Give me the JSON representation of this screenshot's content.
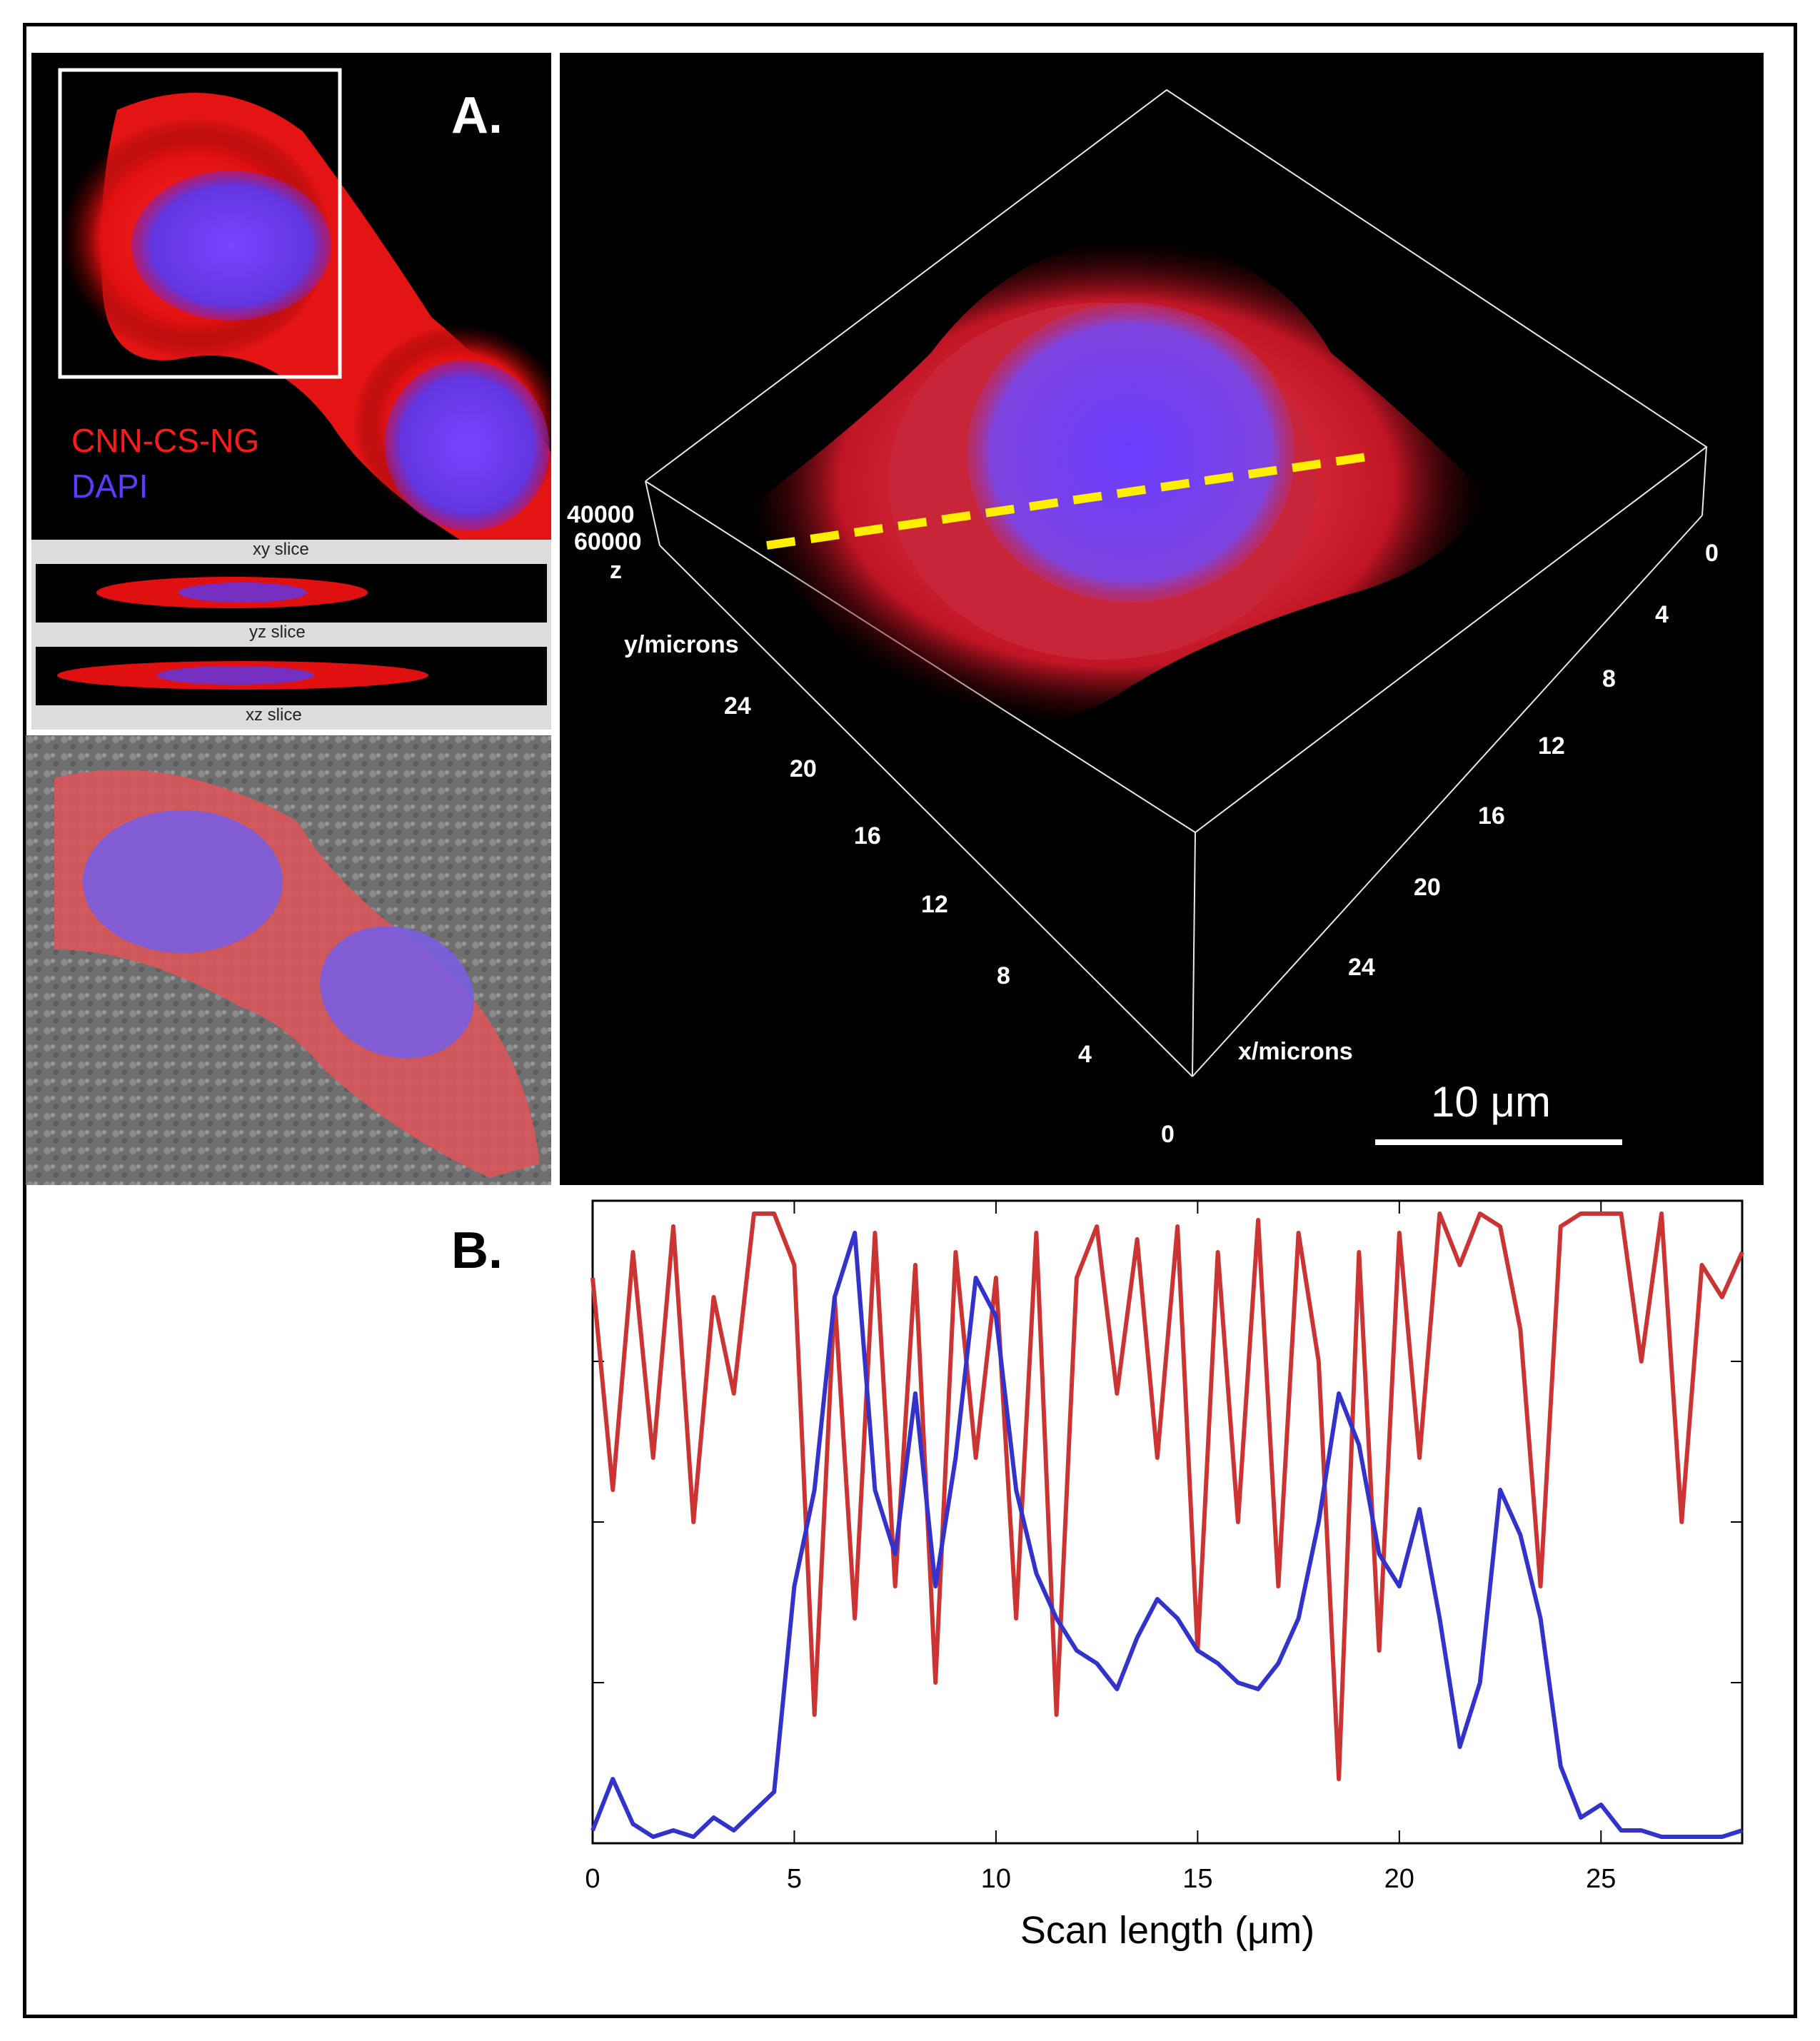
{
  "figure": {
    "panel_a_label": "A.",
    "panel_b_label": "B.",
    "channels": {
      "red": "CNN-CS-NG",
      "blue": "DAPI"
    },
    "slice_labels": [
      "xy slice",
      "yz slice",
      "xz slice"
    ],
    "volume": {
      "z_label": "z",
      "z_ticks": [
        "40000",
        "60000"
      ],
      "y_label": "y/microns",
      "y_ticks": [
        "24",
        "20",
        "16",
        "12",
        "8",
        "4",
        "0"
      ],
      "x_label": "x/microns",
      "x_ticks": [
        "0",
        "4",
        "8",
        "12",
        "16",
        "20",
        "24"
      ],
      "scale_bar": "10 μm"
    },
    "colors": {
      "red_channel": "#ff1a1a",
      "blue_channel": "#6a3cff",
      "dashed_line": "#ffee00"
    }
  },
  "chart_data": {
    "type": "line",
    "xlabel": "Scan length (μm)",
    "ylabel": "",
    "xlim": [
      0,
      28.5
    ],
    "ylim": [
      0,
      1
    ],
    "x_ticks": [
      "0",
      "5",
      "10",
      "15",
      "20",
      "25"
    ],
    "series": [
      {
        "color": "#cc3333",
        "x": [
          0.0,
          0.5,
          1.0,
          1.5,
          2.0,
          2.5,
          3.0,
          3.5,
          4.0,
          4.5,
          5.0,
          5.5,
          6.0,
          6.5,
          7.0,
          7.5,
          8.0,
          8.5,
          9.0,
          9.5,
          10.0,
          10.5,
          11.0,
          11.5,
          12.0,
          12.5,
          13.0,
          13.5,
          14.0,
          14.5,
          15.0,
          15.5,
          16.0,
          16.5,
          17.0,
          17.5,
          18.0,
          18.5,
          19.0,
          19.5,
          20.0,
          20.5,
          21.0,
          21.5,
          22.0,
          22.5,
          23.0,
          23.5,
          24.0,
          24.5,
          25.0,
          25.5,
          26.0,
          26.5,
          27.0,
          27.5,
          28.0,
          28.5
        ],
        "values": [
          0.88,
          0.55,
          0.92,
          0.6,
          0.96,
          0.5,
          0.85,
          0.7,
          0.98,
          0.98,
          0.9,
          0.2,
          0.85,
          0.35,
          0.95,
          0.4,
          0.9,
          0.25,
          0.92,
          0.6,
          0.88,
          0.35,
          0.95,
          0.2,
          0.88,
          0.96,
          0.7,
          0.94,
          0.6,
          0.96,
          0.3,
          0.92,
          0.5,
          0.97,
          0.4,
          0.95,
          0.75,
          0.1,
          0.92,
          0.3,
          0.95,
          0.6,
          0.98,
          0.9,
          0.98,
          0.96,
          0.8,
          0.4,
          0.96,
          0.98,
          0.98,
          0.98,
          0.75,
          0.98,
          0.5,
          0.9,
          0.85,
          0.92
        ]
      },
      {
        "color": "#3333cc",
        "x": [
          0.0,
          0.5,
          1.0,
          1.5,
          2.0,
          2.5,
          3.0,
          3.5,
          4.0,
          4.5,
          5.0,
          5.5,
          6.0,
          6.5,
          7.0,
          7.5,
          8.0,
          8.5,
          9.0,
          9.5,
          10.0,
          10.5,
          11.0,
          11.5,
          12.0,
          12.5,
          13.0,
          13.5,
          14.0,
          14.5,
          15.0,
          15.5,
          16.0,
          16.5,
          17.0,
          17.5,
          18.0,
          18.5,
          19.0,
          19.5,
          20.0,
          20.5,
          21.0,
          21.5,
          22.0,
          22.5,
          23.0,
          23.5,
          24.0,
          24.5,
          25.0,
          25.5,
          26.0,
          26.5,
          27.0,
          27.5,
          28.0,
          28.5
        ],
        "values": [
          0.02,
          0.1,
          0.03,
          0.01,
          0.02,
          0.01,
          0.04,
          0.02,
          0.05,
          0.08,
          0.4,
          0.55,
          0.85,
          0.95,
          0.55,
          0.45,
          0.7,
          0.4,
          0.6,
          0.88,
          0.82,
          0.55,
          0.42,
          0.35,
          0.3,
          0.28,
          0.24,
          0.32,
          0.38,
          0.35,
          0.3,
          0.28,
          0.25,
          0.24,
          0.28,
          0.35,
          0.5,
          0.7,
          0.62,
          0.45,
          0.4,
          0.52,
          0.35,
          0.15,
          0.25,
          0.55,
          0.48,
          0.35,
          0.12,
          0.04,
          0.06,
          0.02,
          0.02,
          0.01,
          0.01,
          0.01,
          0.01,
          0.02
        ]
      }
    ]
  }
}
